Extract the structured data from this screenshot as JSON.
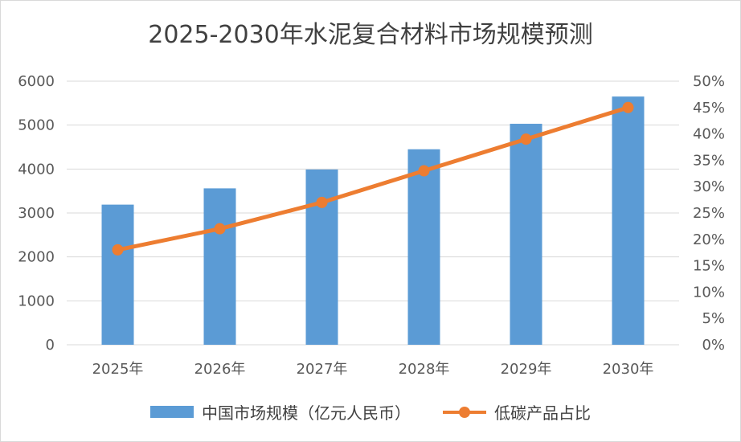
{
  "chart_data": {
    "type": "bar",
    "title": "2025-2030年水泥复合材料市场规模预测",
    "categories": [
      "2025年",
      "2026年",
      "2027年",
      "2028年",
      "2029年",
      "2030年"
    ],
    "series": [
      {
        "name": "中国市场规模（亿元人民币）",
        "type": "bar",
        "axis": "left",
        "color": "#5b9bd5",
        "values": [
          3190,
          3560,
          3990,
          4450,
          5030,
          5650
        ]
      },
      {
        "name": "低碳产品占比",
        "type": "line",
        "axis": "right",
        "color": "#ed7d31",
        "values": [
          0.18,
          0.22,
          0.27,
          0.33,
          0.39,
          0.45
        ]
      }
    ],
    "y_left": {
      "ylim": [
        0,
        6000
      ],
      "ticks": [
        "0",
        "1000",
        "2000",
        "3000",
        "4000",
        "5000",
        "6000"
      ]
    },
    "y_right": {
      "ylim": [
        0,
        0.5
      ],
      "ticks": [
        "0%",
        "5%",
        "10%",
        "15%",
        "20%",
        "25%",
        "30%",
        "35%",
        "40%",
        "45%",
        "50%"
      ]
    },
    "grid": true,
    "legend": "bottom"
  }
}
